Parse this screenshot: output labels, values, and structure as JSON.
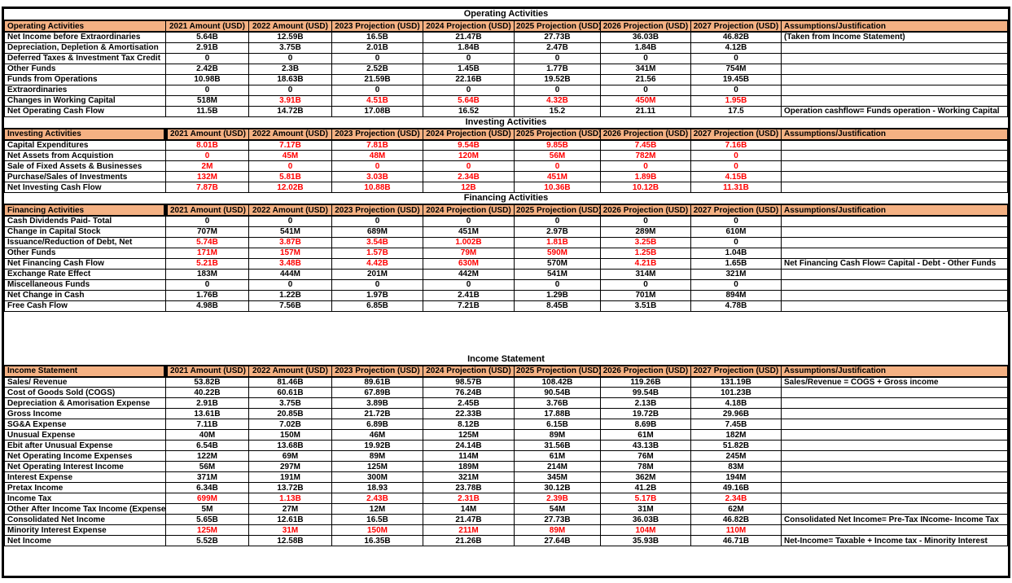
{
  "colors": {
    "header_bg": "#F4B183",
    "negative": "#FF0000",
    "grid": "#000000"
  },
  "assumptions_header": "Assumptions/Justification",
  "year_columns": [
    "2021 Amount (USD)",
    "2022 Amount  (USD)",
    "2023 Projection  (USD)",
    "2024 Projection  (USD)",
    "2025 Projection  (USD)",
    "2026 Projection  (USD)",
    "2027 Projection  (USD)"
  ],
  "sections": [
    {
      "id": "operating-activities",
      "title": "Operating Activities",
      "header_label": "Operating Activities",
      "black_bar": false,
      "gap_before": false,
      "rows": [
        {
          "label": "Net Income before Extraordinaries",
          "values": [
            "5.64B",
            "12.59B",
            "16.5B",
            "21.47B",
            "27.73B",
            "36.03B",
            "46.82B"
          ],
          "red": [
            0,
            0,
            0,
            0,
            0,
            0,
            0
          ],
          "assumption": "(Taken from Income Statement)"
        },
        {
          "label": "Depreciation, Depletion & Amortisation",
          "values": [
            "2.91B",
            "3.75B",
            "2.01B",
            "1.84B",
            "2.47B",
            "1.84B",
            "4.12B"
          ],
          "red": [
            0,
            0,
            0,
            0,
            0,
            0,
            0
          ],
          "assumption": ""
        },
        {
          "label": "Deferred Taxes & Investment Tax Credit",
          "values": [
            "0",
            "0",
            "0",
            "0",
            "0",
            "0",
            "0"
          ],
          "red": [
            0,
            0,
            0,
            0,
            0,
            0,
            0
          ],
          "assumption": ""
        },
        {
          "label": "Other Funds",
          "values": [
            "2.42B",
            "2.3B",
            "2.52B",
            "1.45B",
            "1.77B",
            "341M",
            "754M"
          ],
          "red": [
            0,
            0,
            0,
            0,
            0,
            0,
            0
          ],
          "assumption": ""
        },
        {
          "label": "Funds from Operations",
          "values": [
            "10.98B",
            "18.63B",
            "21.59B",
            "22.16B",
            "19.52B",
            "21.56",
            "19.45B"
          ],
          "red": [
            0,
            0,
            0,
            0,
            0,
            0,
            0
          ],
          "assumption": ""
        },
        {
          "label": "Extraordinaries",
          "values": [
            "0",
            "0",
            "0",
            "0",
            "0",
            "0",
            "0"
          ],
          "red": [
            0,
            0,
            0,
            0,
            0,
            0,
            0
          ],
          "assumption": ""
        },
        {
          "label": "Changes in Working Capital",
          "values": [
            "518M",
            "3.91B",
            "4.51B",
            "5.64B",
            "4.32B",
            "450M",
            "1.95B"
          ],
          "red": [
            0,
            1,
            1,
            1,
            1,
            1,
            1
          ],
          "assumption": ""
        },
        {
          "label": "Net Operating Cash Flow",
          "values": [
            "11.5B",
            "14.72B",
            "17.08B",
            "16.52",
            "15.2",
            "21.11",
            "17.5"
          ],
          "red": [
            0,
            0,
            0,
            0,
            0,
            0,
            0
          ],
          "assumption": "Operation cashflow= Funds operation - Working Capital"
        }
      ]
    },
    {
      "id": "investing-activities",
      "title": "Investing Activities",
      "header_label": "Investing Activities",
      "black_bar": true,
      "gap_before": false,
      "rows": [
        {
          "label": "Capital Expenditures",
          "values": [
            "8.01B",
            "7.17B",
            "7.81B",
            "9.54B",
            "9.85B",
            "7.45B",
            "7.16B"
          ],
          "red": [
            1,
            1,
            1,
            1,
            1,
            1,
            1
          ],
          "assumption": ""
        },
        {
          "label": "Net Assets from Acquistion",
          "values": [
            "0",
            "45M",
            "48M",
            "120M",
            "56M",
            "782M",
            "0"
          ],
          "red": [
            1,
            1,
            1,
            1,
            1,
            1,
            1
          ],
          "assumption": ""
        },
        {
          "label": "Sale of Fixed Assets & Businesses",
          "values": [
            "2M",
            "0",
            "0",
            "0",
            "0",
            "0",
            "0"
          ],
          "red": [
            1,
            1,
            1,
            1,
            1,
            1,
            1
          ],
          "assumption": ""
        },
        {
          "label": "Purchase/Sales of Investments",
          "values": [
            "132M",
            "5.81B",
            "3.03B",
            "2.34B",
            "451M",
            "1.89B",
            "4.15B"
          ],
          "red": [
            1,
            1,
            1,
            1,
            1,
            1,
            1
          ],
          "assumption": ""
        },
        {
          "label": "Net Investing Cash Flow",
          "values": [
            "7.87B",
            "12.02B",
            "10.88B",
            "12B",
            "10.36B",
            "10.12B",
            "11.31B"
          ],
          "red": [
            1,
            1,
            1,
            1,
            1,
            1,
            1
          ],
          "assumption": ""
        }
      ]
    },
    {
      "id": "financing-activities",
      "title": "Financing Activities",
      "header_label": "Financing Activities",
      "black_bar": true,
      "gap_before": false,
      "rows": [
        {
          "label": "Cash Dividends Paid- Total",
          "values": [
            "0",
            "0",
            "0",
            "0",
            "0",
            "0",
            "0"
          ],
          "red": [
            0,
            0,
            0,
            0,
            0,
            0,
            0
          ],
          "assumption": ""
        },
        {
          "label": "Change in Capital Stock",
          "values": [
            "707M",
            "541M",
            "689M",
            "451M",
            "2.97B",
            "289M",
            "610M"
          ],
          "red": [
            0,
            0,
            0,
            0,
            0,
            0,
            0
          ],
          "assumption": ""
        },
        {
          "label": "Issuance/Reduction of Debt, Net",
          "values": [
            "5.74B",
            "3.87B",
            "3.54B",
            "1.002B",
            "1.81B",
            "3.25B",
            "0"
          ],
          "red": [
            1,
            1,
            1,
            1,
            1,
            1,
            0
          ],
          "assumption": ""
        },
        {
          "label": "Other Funds",
          "values": [
            "171M",
            "157M",
            "1.57B",
            "79M",
            "590M",
            "1.25B",
            "1.04B"
          ],
          "red": [
            1,
            1,
            1,
            1,
            1,
            1,
            0
          ],
          "assumption": ""
        },
        {
          "label": "Net Financing Cash Flow",
          "values": [
            "5.21B",
            "3.48B",
            "4.42B",
            "630M",
            "570M",
            "4.21B",
            "1.65B"
          ],
          "red": [
            1,
            1,
            1,
            1,
            0,
            1,
            0
          ],
          "assumption": "Net Financing Cash Flow= Capital - Debt - Other Funds"
        },
        {
          "label": "Exchange Rate Effect",
          "values": [
            "183M",
            "444M",
            "201M",
            "442M",
            "541M",
            "314M",
            "321M"
          ],
          "red": [
            0,
            0,
            0,
            0,
            0,
            0,
            0
          ],
          "assumption": ""
        },
        {
          "label": "Miscellaneous Funds",
          "values": [
            "0",
            "0",
            "0",
            "0",
            "0",
            "0",
            "0"
          ],
          "red": [
            0,
            0,
            0,
            0,
            0,
            0,
            0
          ],
          "assumption": ""
        },
        {
          "label": "Net Change in Cash",
          "values": [
            "1.76B",
            "1.22B",
            "1.97B",
            "2.41B",
            "1.29B",
            "701M",
            "894M"
          ],
          "red": [
            0,
            0,
            0,
            0,
            0,
            0,
            0
          ],
          "assumption": ""
        },
        {
          "label": "Free Cash Flow",
          "values": [
            "4.98B",
            "7.56B",
            "6.85B",
            "7.21B",
            "8.45B",
            "3.51B",
            "4.78B"
          ],
          "red": [
            0,
            0,
            0,
            0,
            0,
            0,
            0
          ],
          "assumption": ""
        }
      ]
    },
    {
      "id": "income-statement",
      "title": "Income Statement",
      "header_label": "Income Statement",
      "black_bar": true,
      "gap_before": true,
      "rows": [
        {
          "label": "Sales/ Revenue",
          "values": [
            "53.82B",
            "81.46B",
            "89.61B",
            "98.57B",
            "108.42B",
            "119.26B",
            "131.19B"
          ],
          "red": [
            0,
            0,
            0,
            0,
            0,
            0,
            0
          ],
          "assumption": "Sales/Revenue = COGS + Gross income"
        },
        {
          "label": "Cost of Goods Sold (COGS)",
          "values": [
            "40.22B",
            "60.61B",
            "67.89B",
            "76.24B",
            "90.54B",
            "99.54B",
            "101.23B"
          ],
          "red": [
            0,
            0,
            0,
            0,
            0,
            0,
            0
          ],
          "assumption": ""
        },
        {
          "label": "Depreciation & Amorisation Expense",
          "values": [
            "2.91B",
            "3.75B",
            "3.89B",
            "2.45B",
            "3.76B",
            "2.13B",
            "4.18B"
          ],
          "red": [
            0,
            0,
            0,
            0,
            0,
            0,
            0
          ],
          "assumption": ""
        },
        {
          "label": "Gross Income",
          "values": [
            "13.61B",
            "20.85B",
            "21.72B",
            "22.33B",
            "17.88B",
            "19.72B",
            "29.96B"
          ],
          "red": [
            0,
            0,
            0,
            0,
            0,
            0,
            0
          ],
          "assumption": ""
        },
        {
          "label": "SG&A Expense",
          "values": [
            "7.11B",
            "7.02B",
            "6.89B",
            "8.12B",
            "6.15B",
            "8.69B",
            "7.45B"
          ],
          "red": [
            0,
            0,
            0,
            0,
            0,
            0,
            0
          ],
          "assumption": ""
        },
        {
          "label": "Unusual Expense",
          "values": [
            "40M",
            "150M",
            "46M",
            "125M",
            "89M",
            "61M",
            "182M"
          ],
          "red": [
            0,
            0,
            0,
            0,
            0,
            0,
            0
          ],
          "assumption": ""
        },
        {
          "label": "Ebit after Unusual Expense",
          "values": [
            "6.54B",
            "13.68B",
            "19.92B",
            "24.14B",
            "31.56B",
            "43.13B",
            "51.82B"
          ],
          "red": [
            0,
            0,
            0,
            0,
            0,
            0,
            0
          ],
          "assumption": ""
        },
        {
          "label": "Net Operating Income Expenses",
          "values": [
            "122M",
            "69M",
            "89M",
            "114M",
            "61M",
            "76M",
            "245M"
          ],
          "red": [
            0,
            0,
            0,
            0,
            0,
            0,
            0
          ],
          "assumption": ""
        },
        {
          "label": "Net Operating Interest Income",
          "values": [
            "56M",
            "297M",
            "125M",
            "189M",
            "214M",
            "78M",
            "83M"
          ],
          "red": [
            0,
            0,
            0,
            0,
            0,
            0,
            0
          ],
          "assumption": ""
        },
        {
          "label": "Interest Expense",
          "values": [
            "371M",
            "191M",
            "300M",
            "321M",
            "345M",
            "362M",
            "194M"
          ],
          "red": [
            0,
            0,
            0,
            0,
            0,
            0,
            0
          ],
          "assumption": ""
        },
        {
          "label": "Pretax Income",
          "values": [
            "6.34B",
            "13.72B",
            "18.93",
            "23.78B",
            "30.12B",
            "41.2B",
            "49.16B"
          ],
          "red": [
            0,
            0,
            0,
            0,
            0,
            0,
            0
          ],
          "assumption": ""
        },
        {
          "label": "Income Tax",
          "values": [
            "699M",
            "1.13B",
            "2.43B",
            "2.31B",
            "2.39B",
            "5.17B",
            "2.34B"
          ],
          "red": [
            1,
            1,
            1,
            1,
            1,
            1,
            1
          ],
          "assumption": ""
        },
        {
          "label": "Other After Income Tax Income (Expense)",
          "values": [
            "5M",
            "27M",
            "12M",
            "14M",
            "54M",
            "31M",
            "62M"
          ],
          "red": [
            0,
            0,
            0,
            0,
            0,
            0,
            0
          ],
          "assumption": ""
        },
        {
          "label": "Consolidated Net Income",
          "values": [
            "5.65B",
            "12.61B",
            "16.5B",
            "21.47B",
            "27.73B",
            "36.03B",
            "46.82B"
          ],
          "red": [
            0,
            0,
            0,
            0,
            0,
            0,
            0
          ],
          "assumption": "Consolidated Net Income= Pre-Tax INcome- Income Tax"
        },
        {
          "label": "Minority Interest Expense",
          "values": [
            "125M",
            "31M",
            "150M",
            "211M",
            "89M",
            "104M",
            "110M"
          ],
          "red": [
            1,
            1,
            1,
            1,
            1,
            1,
            1
          ],
          "assumption": ""
        },
        {
          "label": "Net Income",
          "values": [
            "5.52B",
            "12.58B",
            "16.35B",
            "21.26B",
            "27.64B",
            "35.93B",
            "46.71B"
          ],
          "red": [
            0,
            0,
            0,
            0,
            0,
            0,
            0
          ],
          "assumption": "Net-Income= Taxable + Income tax - Minority Interest"
        }
      ]
    }
  ]
}
